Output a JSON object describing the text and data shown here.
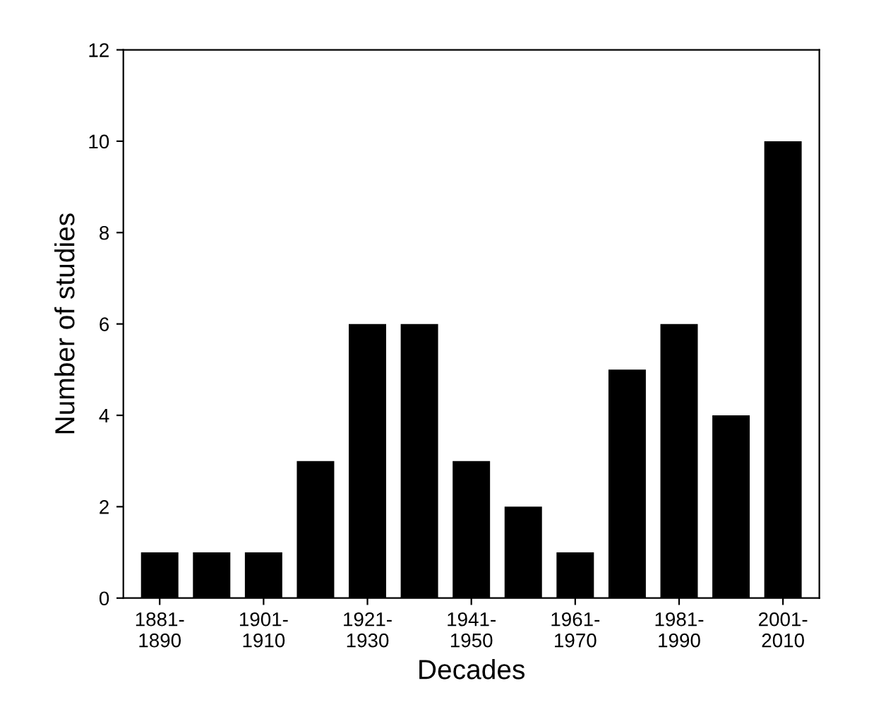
{
  "chart_data": {
    "type": "bar",
    "xlabel": "Decades",
    "ylabel": "Number of studies",
    "categories": [
      "1881-\n1890",
      null,
      "1901-\n1910",
      null,
      "1921-\n1930",
      null,
      "1941-\n1950",
      null,
      "1961-\n1970",
      null,
      "1981-\n1990",
      null,
      "2001-\n2010"
    ],
    "values": [
      1,
      1,
      1,
      3,
      6,
      6,
      3,
      2,
      1,
      5,
      6,
      4,
      10
    ],
    "color": "#000000",
    "ylim": [
      0,
      12
    ],
    "yticks": [
      0,
      2,
      4,
      6,
      8,
      10,
      12
    ],
    "grid": false
  }
}
